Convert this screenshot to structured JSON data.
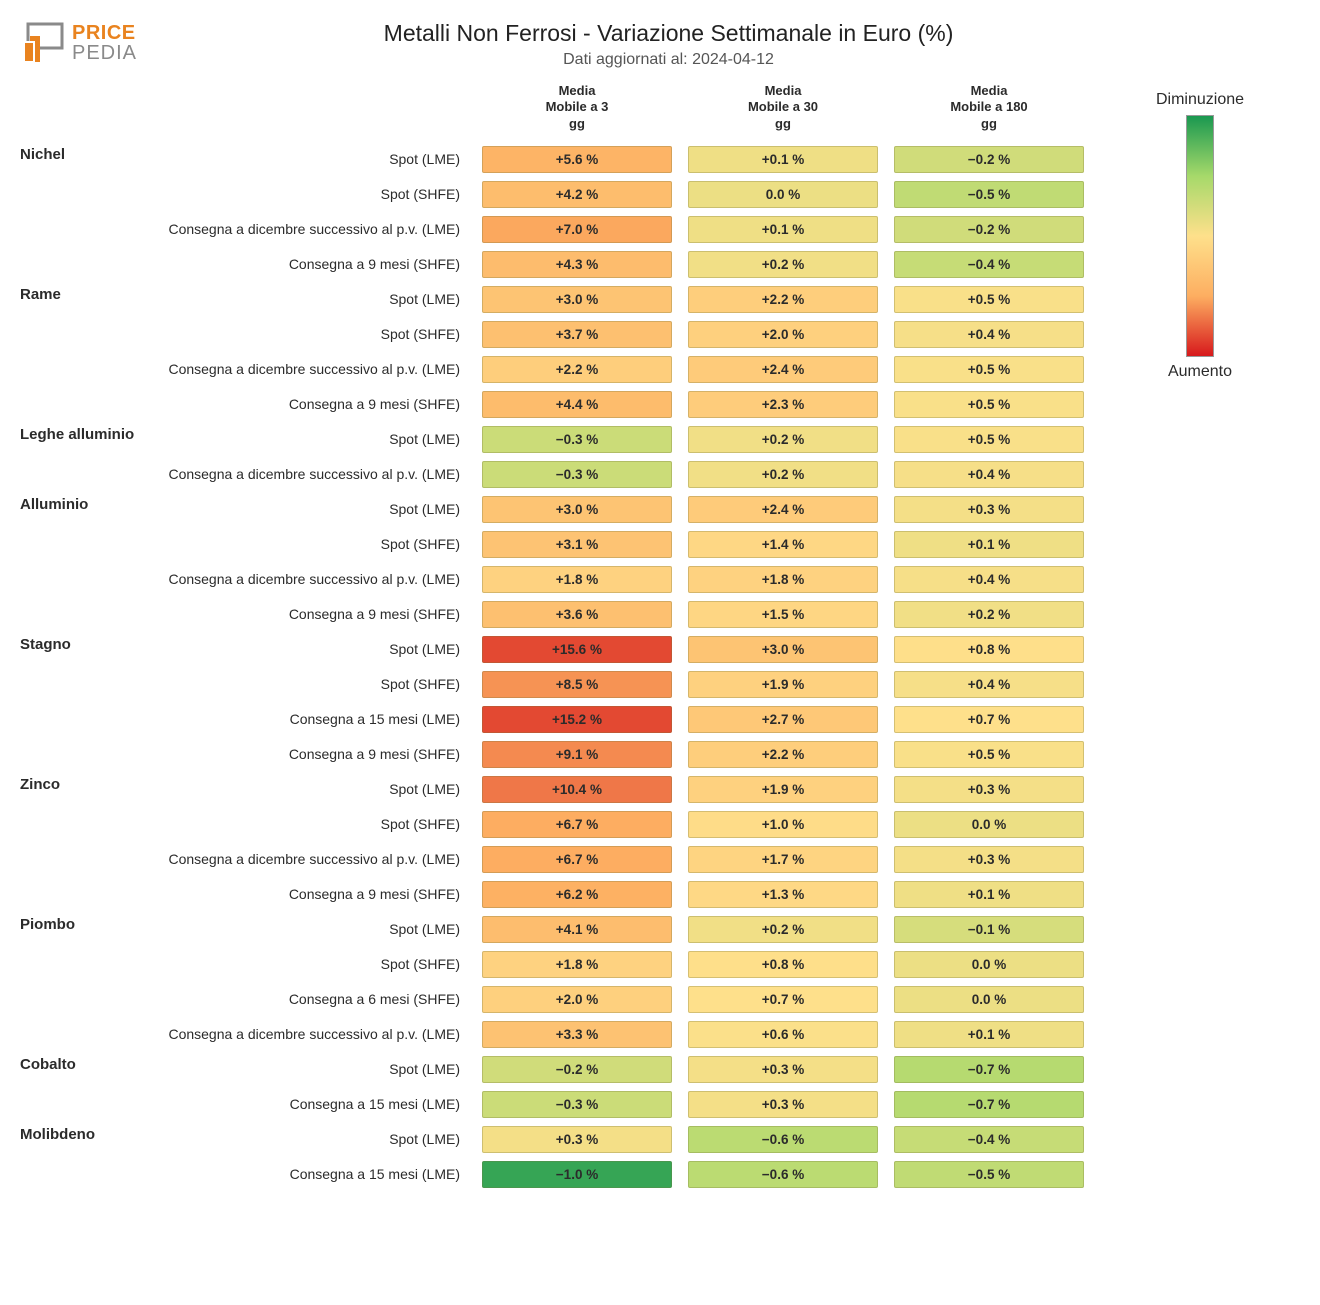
{
  "title": "Metalli Non Ferrosi - Variazione Settimanale in Euro (%)",
  "subtitle": "Dati aggiornati al: 2024-04-12",
  "brand_top": "PRICE",
  "brand_bottom": "PEDIA",
  "columns": [
    "Media\nMobile a 3\ngg",
    "Media\nMobile a 30\ngg",
    "Media\nMobile a 180\ngg"
  ],
  "legend_top": "Diminuzione",
  "legend_bottom": "Aumento",
  "color_stops": [
    "#1a9850",
    "#a6d96a",
    "#fee08b",
    "#fdae61",
    "#d7191c"
  ],
  "categories": [
    {
      "name": "Nichel",
      "rows": [
        {
          "label": "Spot (LME)",
          "vals": [
            5.6,
            0.1,
            -0.2
          ]
        },
        {
          "label": "Spot (SHFE)",
          "vals": [
            4.2,
            0.0,
            -0.5
          ]
        },
        {
          "label": "Consegna a dicembre successivo al p.v. (LME)",
          "vals": [
            7.0,
            0.1,
            -0.2
          ],
          "wide": true
        },
        {
          "label": "Consegna a 9 mesi (SHFE)",
          "vals": [
            4.3,
            0.2,
            -0.4
          ]
        }
      ]
    },
    {
      "name": "Rame",
      "rows": [
        {
          "label": "Spot (LME)",
          "vals": [
            3.0,
            2.2,
            0.5
          ]
        },
        {
          "label": "Spot (SHFE)",
          "vals": [
            3.7,
            2.0,
            0.4
          ]
        },
        {
          "label": "Consegna a dicembre successivo al p.v. (LME)",
          "vals": [
            2.2,
            2.4,
            0.5
          ],
          "wide": true
        },
        {
          "label": "Consegna a 9 mesi (SHFE)",
          "vals": [
            4.4,
            2.3,
            0.5
          ]
        }
      ]
    },
    {
      "name": "Leghe alluminio",
      "rows": [
        {
          "label": "Spot (LME)",
          "vals": [
            -0.3,
            0.2,
            0.5
          ]
        },
        {
          "label": "Consegna a dicembre successivo al p.v. (LME)",
          "vals": [
            -0.3,
            0.2,
            0.4
          ],
          "wide": true
        }
      ]
    },
    {
      "name": "Alluminio",
      "rows": [
        {
          "label": "Spot (LME)",
          "vals": [
            3.0,
            2.4,
            0.3
          ]
        },
        {
          "label": "Spot (SHFE)",
          "vals": [
            3.1,
            1.4,
            0.1
          ]
        },
        {
          "label": "Consegna a dicembre successivo al p.v. (LME)",
          "vals": [
            1.8,
            1.8,
            0.4
          ],
          "wide": true
        },
        {
          "label": "Consegna a 9 mesi (SHFE)",
          "vals": [
            3.6,
            1.5,
            0.2
          ]
        }
      ]
    },
    {
      "name": "Stagno",
      "rows": [
        {
          "label": "Spot (LME)",
          "vals": [
            15.6,
            3.0,
            0.8
          ]
        },
        {
          "label": "Spot (SHFE)",
          "vals": [
            8.5,
            1.9,
            0.4
          ]
        },
        {
          "label": "Consegna a 15 mesi (LME)",
          "vals": [
            15.2,
            2.7,
            0.7
          ]
        },
        {
          "label": "Consegna a 9 mesi (SHFE)",
          "vals": [
            9.1,
            2.2,
            0.5
          ]
        }
      ]
    },
    {
      "name": "Zinco",
      "rows": [
        {
          "label": "Spot (LME)",
          "vals": [
            10.4,
            1.9,
            0.3
          ]
        },
        {
          "label": "Spot (SHFE)",
          "vals": [
            6.7,
            1.0,
            0.0
          ]
        },
        {
          "label": "Consegna a dicembre successivo al p.v. (LME)",
          "vals": [
            6.7,
            1.7,
            0.3
          ],
          "wide": true
        },
        {
          "label": "Consegna a 9 mesi (SHFE)",
          "vals": [
            6.2,
            1.3,
            0.1
          ]
        }
      ]
    },
    {
      "name": "Piombo",
      "rows": [
        {
          "label": "Spot (LME)",
          "vals": [
            4.1,
            0.2,
            -0.1
          ]
        },
        {
          "label": "Spot (SHFE)",
          "vals": [
            1.8,
            0.8,
            0.0
          ]
        },
        {
          "label": "Consegna a 6 mesi (SHFE)",
          "vals": [
            2.0,
            0.7,
            0.0
          ]
        },
        {
          "label": "Consegna a dicembre successivo al p.v. (LME)",
          "vals": [
            3.3,
            0.6,
            0.1
          ],
          "wide": true
        }
      ]
    },
    {
      "name": "Cobalto",
      "rows": [
        {
          "label": "Spot (LME)",
          "vals": [
            -0.2,
            0.3,
            -0.7
          ]
        },
        {
          "label": "Consegna a 15 mesi (LME)",
          "vals": [
            -0.3,
            0.3,
            -0.7
          ]
        }
      ]
    },
    {
      "name": "Molibdeno",
      "rows": [
        {
          "label": "Spot (LME)",
          "vals": [
            0.3,
            -0.6,
            -0.4
          ]
        },
        {
          "label": "Consegna a 15 mesi (LME)",
          "vals": [
            -1.0,
            -0.6,
            -0.5
          ]
        }
      ]
    }
  ]
}
